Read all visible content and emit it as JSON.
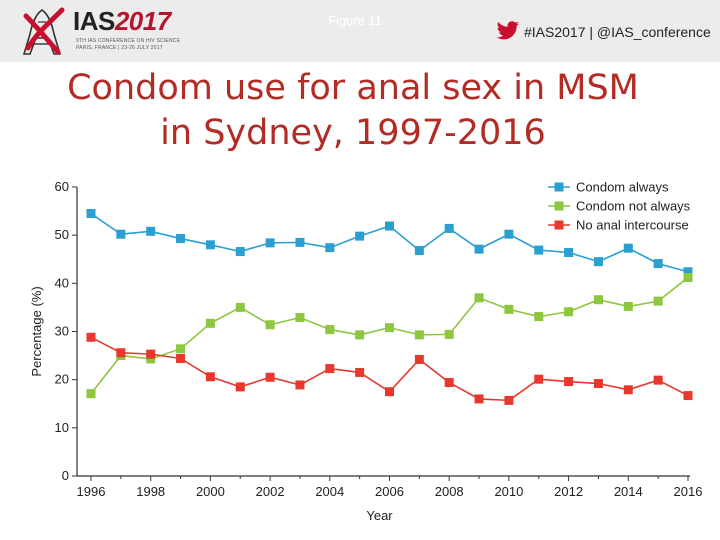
{
  "header": {
    "logo": {
      "name": "IAS",
      "year": "2017",
      "tagline_1": "9TH IAS CONFERENCE ON HIV SCIENCE",
      "tagline_2": "PARIS, FRANCE | 23-26 JULY 2017"
    },
    "figure_label": "Figure 11",
    "social_handle": "#IAS2017 | @IAS_conference",
    "twitter_icon": "twitter-bird-icon",
    "accent_color": "#b5162b"
  },
  "title": {
    "line1": "Condom use for anal sex in MSM",
    "line2": "in Sydney, 1997-2016",
    "color": "#b22b25"
  },
  "chart_data": {
    "type": "line",
    "xlabel": "Year",
    "ylabel": "Percentage (%)",
    "xlim": [
      1996,
      2016
    ],
    "ylim": [
      0,
      60
    ],
    "x_ticks": [
      1996,
      1998,
      2000,
      2002,
      2004,
      2006,
      2008,
      2010,
      2012,
      2014,
      2016
    ],
    "y_ticks": [
      0,
      10,
      20,
      30,
      40,
      50,
      60
    ],
    "grid": false,
    "legend_position": "top-right",
    "x": [
      1996,
      1997,
      1998,
      1999,
      2000,
      2001,
      2002,
      2003,
      2004,
      2005,
      2006,
      2007,
      2008,
      2009,
      2010,
      2011,
      2012,
      2013,
      2014,
      2015,
      2016
    ],
    "series": [
      {
        "name": "Condom always",
        "color": "#2a9fd0",
        "values": [
          54.5,
          50.2,
          50.8,
          49.3,
          48.0,
          46.6,
          48.4,
          48.5,
          47.4,
          49.8,
          51.9,
          46.8,
          51.4,
          47.1,
          50.2,
          46.9,
          46.4,
          44.5,
          47.3,
          44.1,
          42.4
        ]
      },
      {
        "name": "Condom not always",
        "color": "#8dc63f",
        "values": [
          17.1,
          25.0,
          24.3,
          26.4,
          31.7,
          35.0,
          31.4,
          32.9,
          30.4,
          29.3,
          30.8,
          29.3,
          29.4,
          37.0,
          34.6,
          33.1,
          34.1,
          36.6,
          35.2,
          36.3,
          41.2
        ]
      },
      {
        "name": "No anal intercourse",
        "color": "#e8382d",
        "values": [
          28.8,
          25.6,
          25.3,
          24.4,
          20.6,
          18.5,
          20.5,
          18.9,
          22.3,
          21.5,
          17.5,
          24.2,
          19.4,
          16.0,
          15.7,
          20.1,
          19.6,
          19.2,
          17.9,
          19.9,
          16.7
        ]
      }
    ]
  }
}
